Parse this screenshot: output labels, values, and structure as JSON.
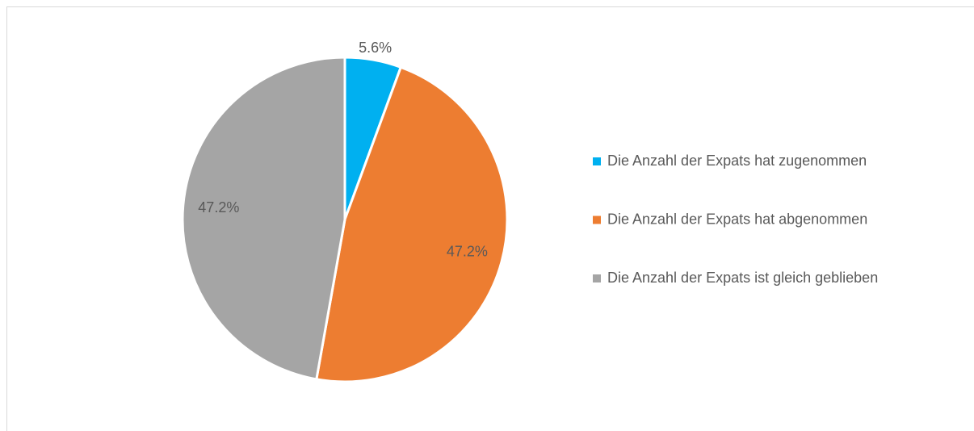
{
  "chart_data": {
    "type": "pie",
    "categories": [
      "Die Anzahl der Expats hat zugenommen",
      "Die Anzahl der Expats hat abgenommen",
      "Die Anzahl der Expats ist gleich geblieben"
    ],
    "values": [
      5.6,
      47.2,
      47.2
    ],
    "value_labels": [
      "5.6%",
      "47.2%",
      "47.2%"
    ],
    "colors": [
      "#00b0f0",
      "#ed7d31",
      "#a5a5a5"
    ],
    "legend": "right"
  }
}
